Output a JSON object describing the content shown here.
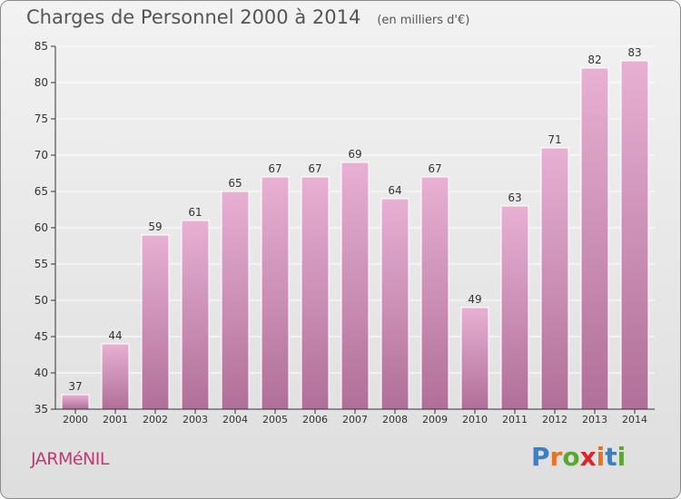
{
  "title": "Charges de Personnel 2000 à 2014",
  "subtitle": "(en milliers d'€)",
  "town": "JARMéNIL",
  "brand": {
    "text": "Proxiti",
    "letter_colors": [
      "#3b7fc4",
      "#e8731e",
      "#5aa832",
      "#d9262b",
      "#e8731e",
      "#3b7fc4",
      "#5aa832"
    ]
  },
  "colors": {
    "bar_top": "#e8b0d3",
    "bar_bottom": "#b06f98",
    "bar_stroke": "#ffffff",
    "axis": "#333333",
    "gridline": "#ffffff",
    "text": "#333333"
  },
  "chart_data": {
    "type": "bar",
    "categories": [
      "2000",
      "2001",
      "2002",
      "2003",
      "2004",
      "2005",
      "2006",
      "2007",
      "2008",
      "2009",
      "2010",
      "2011",
      "2012",
      "2013",
      "2014"
    ],
    "values": [
      37,
      44,
      59,
      61,
      65,
      67,
      67,
      69,
      64,
      67,
      49,
      63,
      71,
      82,
      83
    ],
    "ylim": [
      35,
      85
    ],
    "yticks": [
      35,
      40,
      45,
      50,
      55,
      60,
      65,
      70,
      75,
      80,
      85
    ],
    "grid": true,
    "data_labels": true
  }
}
